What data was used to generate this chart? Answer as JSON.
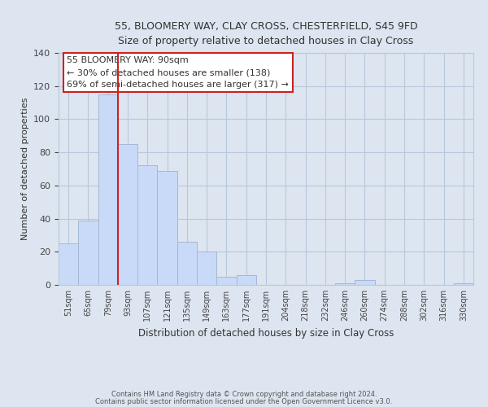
{
  "title": "55, BLOOMERY WAY, CLAY CROSS, CHESTERFIELD, S45 9FD",
  "subtitle": "Size of property relative to detached houses in Clay Cross",
  "xlabel": "Distribution of detached houses by size in Clay Cross",
  "ylabel": "Number of detached properties",
  "bin_labels": [
    "51sqm",
    "65sqm",
    "79sqm",
    "93sqm",
    "107sqm",
    "121sqm",
    "135sqm",
    "149sqm",
    "163sqm",
    "177sqm",
    "191sqm",
    "204sqm",
    "218sqm",
    "232sqm",
    "246sqm",
    "260sqm",
    "274sqm",
    "288sqm",
    "302sqm",
    "316sqm",
    "330sqm"
  ],
  "bar_heights": [
    25,
    39,
    115,
    85,
    72,
    69,
    26,
    20,
    5,
    6,
    0,
    0,
    0,
    0,
    1,
    3,
    0,
    0,
    0,
    0,
    1
  ],
  "bar_color": "#c9daf8",
  "bar_edgecolor": "#a4b8d4",
  "grid_color": "#b8c8dc",
  "background_color": "#dde5f0",
  "ylim": [
    0,
    140
  ],
  "vline_x_index": 2.85,
  "annotation_text": "55 BLOOMERY WAY: 90sqm\n← 30% of detached houses are smaller (138)\n69% of semi-detached houses are larger (317) →",
  "footer_line1": "Contains HM Land Registry data © Crown copyright and database right 2024.",
  "footer_line2": "Contains public sector information licensed under the Open Government Licence v3.0."
}
